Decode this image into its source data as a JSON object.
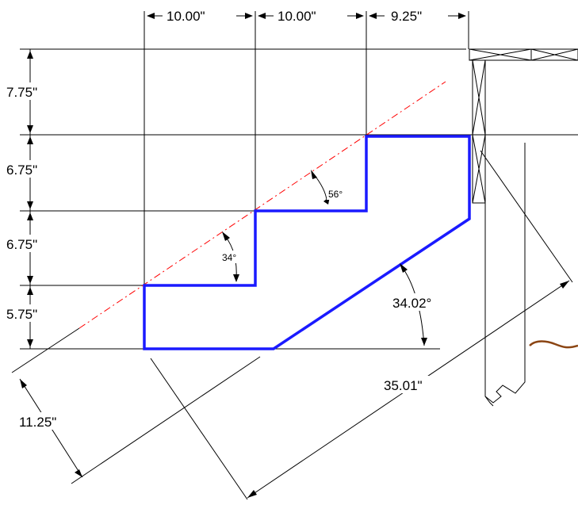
{
  "dimensions": {
    "run_1": "10.00\"",
    "run_2": "10.00\"",
    "run_3": "9.25\"",
    "rise_top": "7.75\"",
    "rise_2": "6.75\"",
    "rise_3": "6.75\"",
    "rise_bottom": "5.75\"",
    "stringer_depth": "11.25\"",
    "stringer_length": "35.01\""
  },
  "angles": {
    "upper_step": "56°",
    "lower_step": "34°",
    "bottom_cut": "34.02°"
  },
  "colors": {
    "stair_outline": "#1a1aff",
    "pitch_line": "#ff0000",
    "squiggle": "#8b4513"
  }
}
